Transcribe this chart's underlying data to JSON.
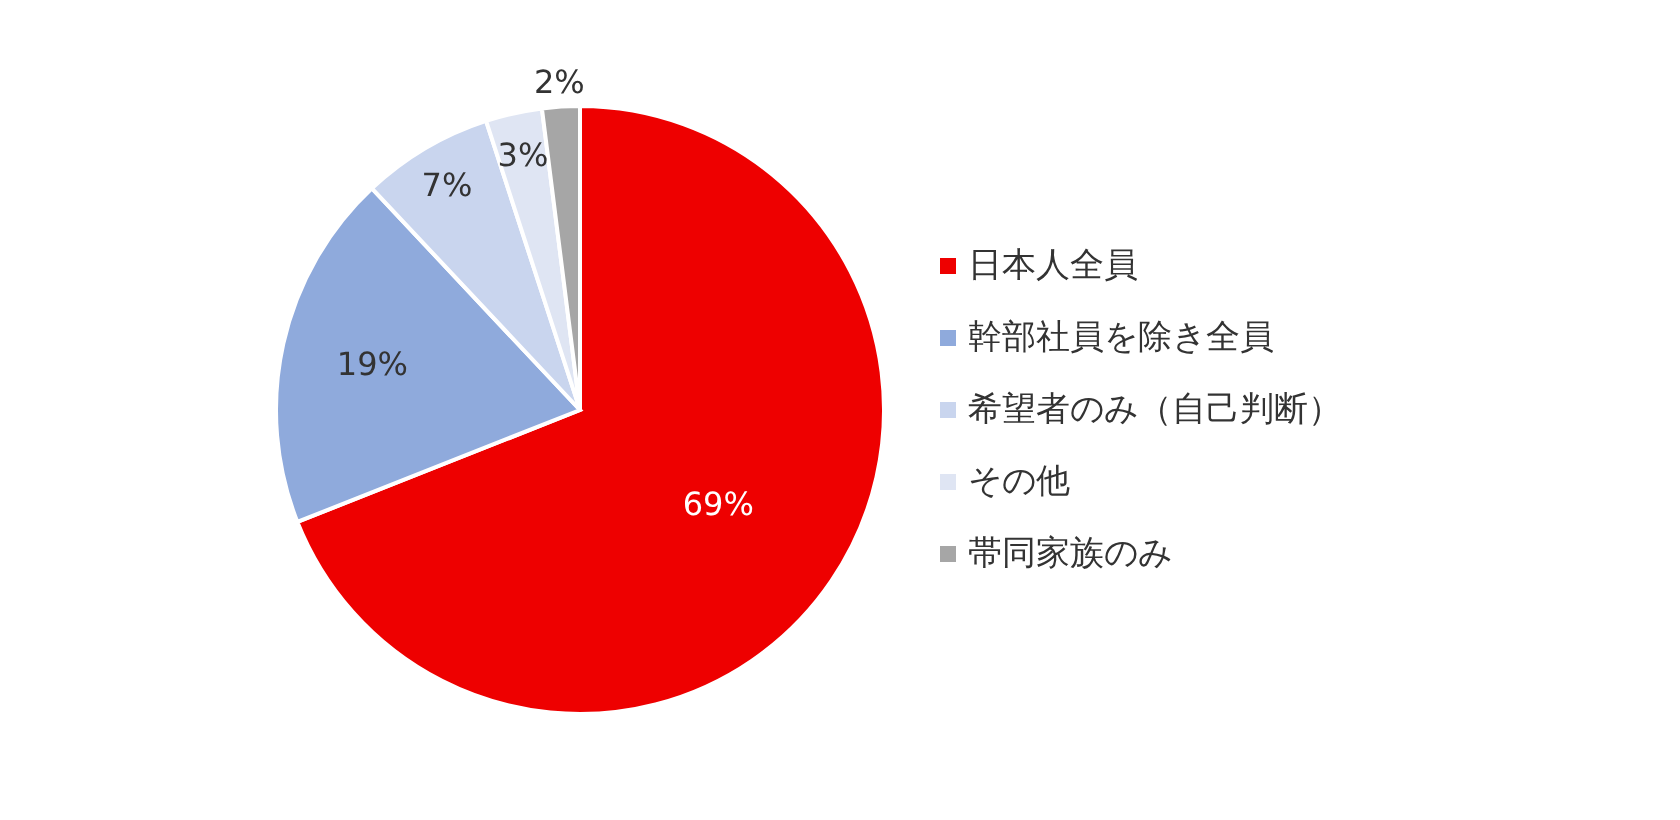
{
  "chart_data": {
    "type": "pie",
    "categories": [
      "日本人全員",
      "幹部社員を除き全員",
      "希望者のみ（自己判断）",
      "その他",
      "帯同家族のみ"
    ],
    "values": [
      69,
      19,
      7,
      3,
      2
    ],
    "value_labels": [
      "69%",
      "19%",
      "7%",
      "3%",
      "2%"
    ],
    "colors": [
      "#ee0000",
      "#8faadc",
      "#c9d5ee",
      "#dfe5f3",
      "#a6a6a6"
    ],
    "legend": "right"
  }
}
